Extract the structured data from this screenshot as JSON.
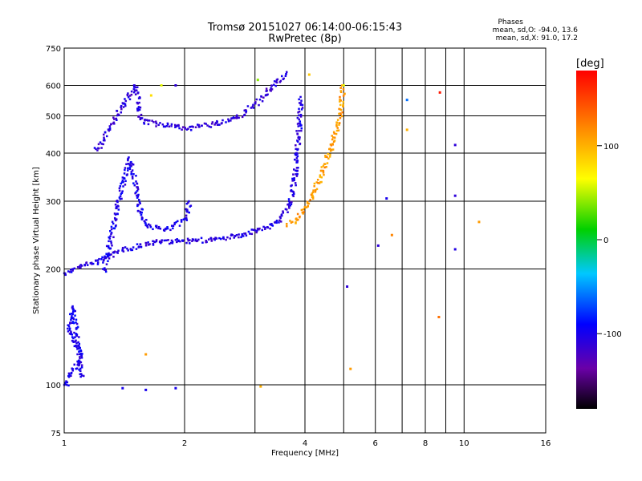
{
  "title": {
    "line1": "Tromsø 20151027 06:14:00-06:15:43",
    "line2": "RwPretec (8p)"
  },
  "phase_box": {
    "heading": "Phases",
    "o_line": "mean, sd,O: -94.0, 13.6",
    "x_line": "mean, sd,X:  91.0, 17.2"
  },
  "colorbar": {
    "label": "[deg]",
    "ticks": [
      {
        "label": "100",
        "value": 100
      },
      {
        "label": "0",
        "value": 0
      },
      {
        "label": "-100",
        "value": -100
      }
    ],
    "range": [
      -180,
      180
    ],
    "colormap": "rainbow black-purple-blue-cyan-green-yellow-red"
  },
  "chart_data": {
    "type": "scatter",
    "title": "Tromsø 20151027 06:14:00-06:15:43",
    "subtitle": "RwPretec (8p)",
    "xlabel": "Frequency [MHz]",
    "ylabel": "Stationary phase Virtual Height [km]",
    "xscale": "log",
    "yscale": "log",
    "xlim": [
      1,
      16
    ],
    "ylim": [
      75,
      750
    ],
    "xticks": [
      1,
      2,
      4,
      6,
      8,
      10,
      16
    ],
    "xtick_labels": [
      "1",
      "2",
      "4",
      "6",
      "8",
      "10",
      "16"
    ],
    "xgrid": [
      1,
      2,
      3,
      4,
      5,
      6,
      7,
      8,
      9,
      10
    ],
    "yticks": [
      75,
      100,
      200,
      300,
      400,
      500,
      600,
      750
    ],
    "ytick_labels": [
      "75",
      "100",
      "200",
      "300",
      "400",
      "500",
      "600",
      "750"
    ],
    "ygrid": [
      100,
      200,
      300,
      400,
      500,
      600
    ],
    "grid": true,
    "color_meaning": "phase [deg]",
    "traces": [
      {
        "name": "",
        "phase": -105,
        "points": [
          [
            1.0,
            195
          ],
          [
            1.05,
            200
          ],
          [
            1.1,
            205
          ],
          [
            1.2,
            210
          ],
          [
            1.3,
            218
          ],
          [
            1.4,
            225
          ],
          [
            1.55,
            232
          ],
          [
            1.7,
            236
          ],
          [
            1.9,
            238
          ],
          [
            2.1,
            238
          ],
          [
            2.4,
            240
          ],
          [
            2.7,
            245
          ],
          [
            3.0,
            252
          ],
          [
            3.3,
            262
          ],
          [
            3.5,
            275
          ],
          [
            3.65,
            300
          ],
          [
            3.75,
            340
          ],
          [
            3.8,
            400
          ],
          [
            3.85,
            470
          ],
          [
            3.9,
            560
          ]
        ]
      },
      {
        "name": "",
        "phase": -100,
        "points": [
          [
            1.25,
            200
          ],
          [
            1.3,
            240
          ],
          [
            1.35,
            290
          ],
          [
            1.4,
            340
          ],
          [
            1.45,
            390
          ],
          [
            1.5,
            330
          ],
          [
            1.55,
            280
          ],
          [
            1.6,
            260
          ],
          [
            1.8,
            255
          ],
          [
            2.0,
            270
          ],
          [
            2.05,
            300
          ]
        ]
      },
      {
        "name": "",
        "phase": -110,
        "points": [
          [
            1.2,
            410
          ],
          [
            1.3,
            470
          ],
          [
            1.4,
            540
          ],
          [
            1.5,
            600
          ],
          [
            1.55,
            490
          ],
          [
            1.7,
            478
          ],
          [
            1.9,
            470
          ],
          [
            2.1,
            468
          ],
          [
            2.4,
            480
          ],
          [
            2.7,
            500
          ],
          [
            3.0,
            540
          ],
          [
            3.2,
            580
          ],
          [
            3.4,
            620
          ],
          [
            3.6,
            650
          ]
        ]
      },
      {
        "name": "",
        "phase": 110,
        "points": [
          [
            3.6,
            262
          ],
          [
            3.8,
            270
          ],
          [
            4.0,
            290
          ],
          [
            4.2,
            320
          ],
          [
            4.4,
            360
          ],
          [
            4.6,
            410
          ],
          [
            4.8,
            470
          ],
          [
            4.9,
            520
          ],
          [
            4.95,
            600
          ]
        ]
      },
      {
        "name": "",
        "phase": -100,
        "points": [
          [
            1.0,
            100
          ],
          [
            1.05,
            110
          ],
          [
            1.1,
            120
          ],
          [
            1.02,
            140
          ],
          [
            1.05,
            160
          ],
          [
            1.1,
            105
          ]
        ]
      }
    ],
    "scatter_points": [
      {
        "x": 1.75,
        "y": 600,
        "phase": 60
      },
      {
        "x": 1.65,
        "y": 565,
        "phase": 80
      },
      {
        "x": 3.05,
        "y": 620,
        "phase": 40
      },
      {
        "x": 3.1,
        "y": 99,
        "phase": 100
      },
      {
        "x": 4.1,
        "y": 640,
        "phase": 90
      },
      {
        "x": 5.0,
        "y": 600,
        "phase": 60
      },
      {
        "x": 5.1,
        "y": 180,
        "phase": -110
      },
      {
        "x": 5.2,
        "y": 110,
        "phase": 110
      },
      {
        "x": 6.1,
        "y": 230,
        "phase": -110
      },
      {
        "x": 6.4,
        "y": 305,
        "phase": -100
      },
      {
        "x": 6.6,
        "y": 245,
        "phase": 120
      },
      {
        "x": 7.2,
        "y": 550,
        "phase": -60
      },
      {
        "x": 7.2,
        "y": 460,
        "phase": 100
      },
      {
        "x": 8.7,
        "y": 575,
        "phase": 170
      },
      {
        "x": 8.65,
        "y": 150,
        "phase": 130
      },
      {
        "x": 9.5,
        "y": 420,
        "phase": -110
      },
      {
        "x": 9.5,
        "y": 310,
        "phase": -110
      },
      {
        "x": 9.5,
        "y": 225,
        "phase": -105
      },
      {
        "x": 10.9,
        "y": 265,
        "phase": 110
      },
      {
        "x": 1.4,
        "y": 98,
        "phase": -100
      },
      {
        "x": 1.6,
        "y": 97,
        "phase": -100
      },
      {
        "x": 1.9,
        "y": 98,
        "phase": -100
      },
      {
        "x": 1.6,
        "y": 120,
        "phase": 110
      },
      {
        "x": 1.9,
        "y": 600,
        "phase": -110
      }
    ]
  }
}
